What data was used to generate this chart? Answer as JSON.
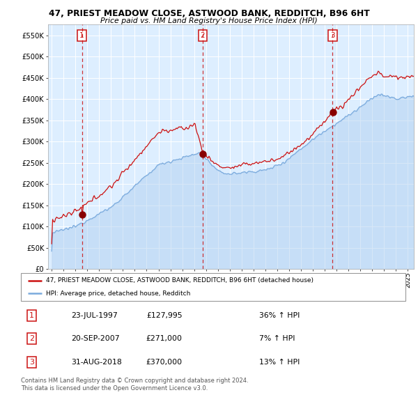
{
  "title": "47, PRIEST MEADOW CLOSE, ASTWOOD BANK, REDDITCH, B96 6HT",
  "subtitle": "Price paid vs. HM Land Registry's House Price Index (HPI)",
  "ylabel_ticks": [
    "£0",
    "£50K",
    "£100K",
    "£150K",
    "£200K",
    "£250K",
    "£300K",
    "£350K",
    "£400K",
    "£450K",
    "£500K",
    "£550K"
  ],
  "ytick_vals": [
    0,
    50000,
    100000,
    150000,
    200000,
    250000,
    300000,
    350000,
    400000,
    450000,
    500000,
    550000
  ],
  "ylim": [
    0,
    575000
  ],
  "xlim_start": 1994.7,
  "xlim_end": 2025.5,
  "hpi_color": "#7aaadd",
  "hpi_fill_color": "#aaccee",
  "price_color": "#cc1111",
  "bg_color": "#ddeeff",
  "grid_color": "#ffffff",
  "sale1_date": 1997.55,
  "sale1_price": 127995,
  "sale2_date": 2007.72,
  "sale2_price": 271000,
  "sale3_date": 2018.66,
  "sale3_price": 370000,
  "legend_line1": "47, PRIEST MEADOW CLOSE, ASTWOOD BANK, REDDITCH, B96 6HT (detached house)",
  "legend_line2": "HPI: Average price, detached house, Redditch",
  "table_data": [
    {
      "num": "1",
      "date": "23-JUL-1997",
      "price": "£127,995",
      "hpi": "36% ↑ HPI"
    },
    {
      "num": "2",
      "date": "20-SEP-2007",
      "price": "£271,000",
      "hpi": "7% ↑ HPI"
    },
    {
      "num": "3",
      "date": "31-AUG-2018",
      "price": "£370,000",
      "hpi": "13% ↑ HPI"
    }
  ],
  "footer": "Contains HM Land Registry data © Crown copyright and database right 2024.\nThis data is licensed under the Open Government Licence v3.0."
}
